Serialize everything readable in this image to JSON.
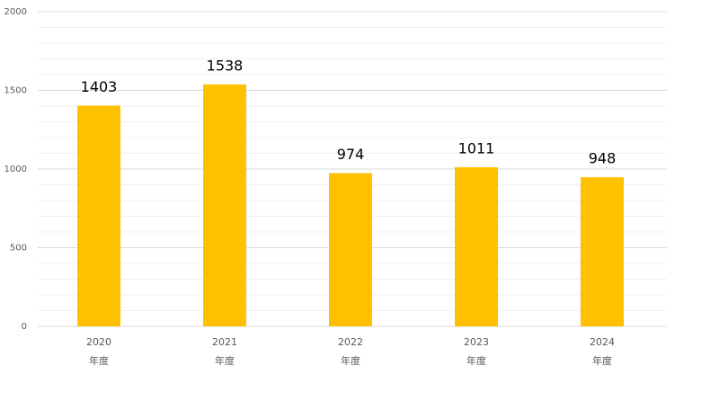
{
  "chart_data": {
    "type": "bar",
    "categories": [
      [
        "2020",
        "年度"
      ],
      [
        "2021",
        "年度"
      ],
      [
        "2022",
        "年度"
      ],
      [
        "2023",
        "年度"
      ],
      [
        "2024",
        "年度"
      ]
    ],
    "values": [
      1403,
      1538,
      974,
      1011,
      948
    ],
    "color": "#ffc000",
    "ylim": [
      0,
      2000
    ],
    "yticks": [
      0,
      500,
      1000,
      1500,
      2000
    ],
    "grid": true
  }
}
